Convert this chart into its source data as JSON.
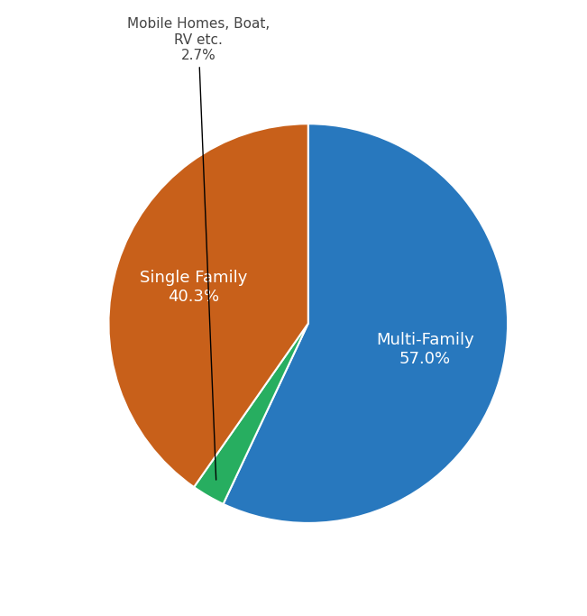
{
  "pie_values": [
    57.0,
    2.7,
    40.3
  ],
  "pie_colors": [
    "#2878BE",
    "#27AE60",
    "#C8601A"
  ],
  "multi_family_label": "Multi-Family\n57.0%",
  "single_family_label": "Single Family\n40.3%",
  "external_label": "Mobile Homes, Boat,\nRV etc.\n2.7%",
  "figsize": [
    6.51,
    6.83
  ],
  "dpi": 100,
  "startangle": 90,
  "background_color": "#ffffff",
  "label_fontsize": 13,
  "annotation_fontsize": 11
}
